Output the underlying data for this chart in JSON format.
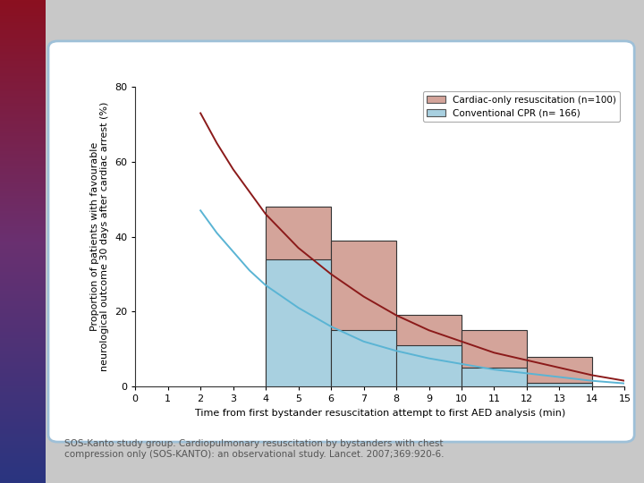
{
  "xlabel": "Time from first bystander resuscitation attempt to first AED analysis (min)",
  "ylabel": "Proportion of patients with favourable\nneurological outcome 30 days after cardiac arrest (%)",
  "xlim": [
    0,
    15
  ],
  "ylim": [
    0,
    80
  ],
  "xticks": [
    0,
    1,
    2,
    3,
    4,
    5,
    6,
    7,
    8,
    9,
    10,
    11,
    12,
    13,
    14,
    15
  ],
  "yticks": [
    0,
    20,
    40,
    60,
    80
  ],
  "cardiac_bars": {
    "x_starts": [
      4,
      6,
      8,
      10,
      12
    ],
    "widths": [
      2,
      2,
      2,
      2,
      2
    ],
    "heights": [
      48,
      39,
      19,
      15,
      8
    ],
    "color": "#d4a49a",
    "edgecolor": "#333333"
  },
  "cpr_bars": {
    "x_starts": [
      4,
      6,
      8,
      10,
      12
    ],
    "widths": [
      2,
      2,
      2,
      2,
      2
    ],
    "heights": [
      34,
      15,
      11,
      5,
      1
    ],
    "color": "#a8d0e0",
    "edgecolor": "#333333"
  },
  "cardiac_curve": {
    "x": [
      2.0,
      2.5,
      3.0,
      3.5,
      4.0,
      5.0,
      6.0,
      7.0,
      8.0,
      9.0,
      10.0,
      11.0,
      12.0,
      13.0,
      14.0,
      15.0
    ],
    "y": [
      73,
      65,
      58,
      52,
      46,
      37,
      30,
      24,
      19,
      15,
      12,
      9,
      7,
      5,
      3,
      1.5
    ],
    "color": "#8b1a1a",
    "linewidth": 1.4
  },
  "cpr_curve": {
    "x": [
      2.0,
      2.5,
      3.0,
      3.5,
      4.0,
      5.0,
      6.0,
      7.0,
      8.0,
      9.0,
      10.0,
      11.0,
      12.0,
      13.0,
      14.0,
      15.0
    ],
    "y": [
      47,
      41,
      36,
      31,
      27,
      21,
      16,
      12,
      9.5,
      7.5,
      6,
      4.5,
      3.5,
      2.5,
      1.5,
      0.8
    ],
    "color": "#5ab4d4",
    "linewidth": 1.4
  },
  "legend": {
    "cardiac_label": "Cardiac-only resuscitation (n=100)",
    "cpr_label": "Conventional CPR (n= 166)",
    "cardiac_color": "#d4a49a",
    "cpr_color": "#a8d0e0",
    "edgecolor": "#555555"
  },
  "caption": "SOS-Kanto study group. Cardiopulmonary resuscitation by bystanders with chest\ncompression only (SOS-KANTO): an observational study. Lancet. 2007;369:920-6.",
  "background_color": "#ffffff",
  "outer_bg": "#c8c8c8",
  "side_strip_colors": [
    "#2a3580",
    "#6a3070",
    "#8b1020"
  ],
  "box_border_color": "#9ec0d8",
  "axis_fontsize": 8,
  "label_fontsize": 8,
  "caption_fontsize": 7.5
}
